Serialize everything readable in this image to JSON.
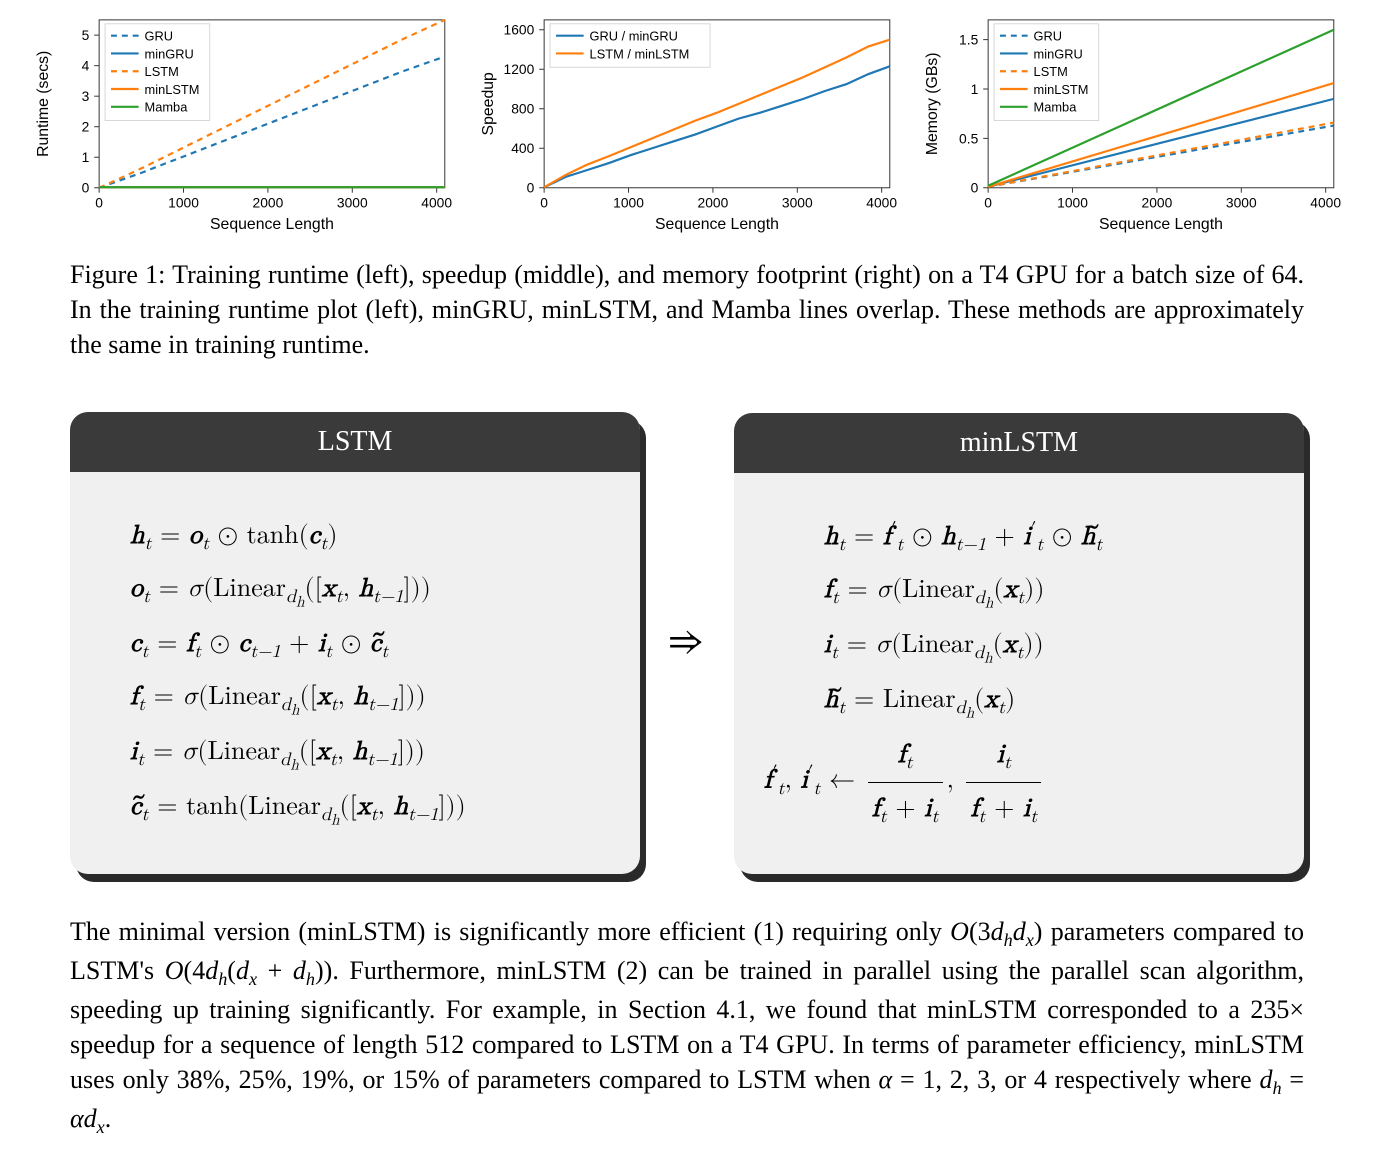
{
  "colors": {
    "GRU": "#1f77b4",
    "minGRU": "#1f77b4",
    "LSTM": "#ff7f0e",
    "minLSTM": "#ff7f0e",
    "Mamba": "#2ca02c",
    "axis": "#333333",
    "tick": "#333333",
    "box_bg": "#f0f0f0",
    "box_header": "#3a3a3a",
    "box_shadow": "#2a2a2a"
  },
  "chart_left": {
    "type": "line",
    "xlabel": "Sequence Length",
    "ylabel": "Runtime (secs)",
    "xlim": [
      0,
      4096
    ],
    "ylim": [
      0,
      5.5
    ],
    "xticks": [
      0,
      1000,
      2000,
      3000,
      4000
    ],
    "yticks": [
      0,
      1,
      2,
      3,
      4,
      5
    ],
    "label_fontsize": 12,
    "legend_pos": "upper-left",
    "series": [
      {
        "name": "GRU",
        "color": "#1f77b4",
        "dash": true,
        "x": [
          0,
          256,
          512,
          768,
          1024,
          1536,
          2048,
          2560,
          3072,
          3584,
          4096
        ],
        "y": [
          0,
          0.25,
          0.5,
          0.78,
          1.05,
          1.6,
          2.15,
          2.7,
          3.25,
          3.8,
          4.3
        ]
      },
      {
        "name": "minGRU",
        "color": "#1f77b4",
        "dash": false,
        "x": [
          0,
          4096
        ],
        "y": [
          0.02,
          0.02
        ]
      },
      {
        "name": "LSTM",
        "color": "#ff7f0e",
        "dash": true,
        "x": [
          0,
          256,
          512,
          768,
          1024,
          1536,
          2048,
          2560,
          3072,
          3584,
          4096
        ],
        "y": [
          0,
          0.32,
          0.65,
          1.0,
          1.35,
          2.05,
          2.75,
          3.45,
          4.15,
          4.85,
          5.5
        ]
      },
      {
        "name": "minLSTM",
        "color": "#ff7f0e",
        "dash": false,
        "x": [
          0,
          4096
        ],
        "y": [
          0.02,
          0.02
        ]
      },
      {
        "name": "Mamba",
        "color": "#2ca02c",
        "dash": false,
        "x": [
          0,
          4096
        ],
        "y": [
          0.02,
          0.02
        ]
      }
    ]
  },
  "chart_mid": {
    "type": "line",
    "xlabel": "Sequence Length",
    "ylabel": "Speedup",
    "xlim": [
      0,
      4096
    ],
    "ylim": [
      0,
      1700
    ],
    "xticks": [
      0,
      1000,
      2000,
      3000,
      4000
    ],
    "yticks": [
      0,
      400,
      800,
      1200,
      1600
    ],
    "label_fontsize": 12,
    "legend_pos": "upper-left",
    "series": [
      {
        "name": "GRU / minGRU",
        "color": "#1f77b4",
        "dash": false,
        "x": [
          0,
          256,
          512,
          768,
          1024,
          1280,
          1536,
          1792,
          2048,
          2304,
          2560,
          2816,
          3072,
          3328,
          3584,
          3840,
          4096
        ],
        "y": [
          5,
          110,
          180,
          250,
          330,
          400,
          470,
          540,
          620,
          700,
          760,
          830,
          900,
          980,
          1050,
          1150,
          1230
        ]
      },
      {
        "name": "LSTM / minLSTM",
        "color": "#ff7f0e",
        "dash": false,
        "x": [
          0,
          256,
          512,
          768,
          1024,
          1280,
          1536,
          1792,
          2048,
          2304,
          2560,
          2816,
          3072,
          3328,
          3584,
          3840,
          4096
        ],
        "y": [
          5,
          130,
          235,
          320,
          410,
          500,
          590,
          680,
          760,
          850,
          940,
          1030,
          1120,
          1220,
          1320,
          1430,
          1500
        ]
      }
    ]
  },
  "chart_right": {
    "type": "line",
    "xlabel": "Sequence Length",
    "ylabel": "Memory (GBs)",
    "xlim": [
      0,
      4096
    ],
    "ylim": [
      0,
      1.7
    ],
    "xticks": [
      0,
      1000,
      2000,
      3000,
      4000
    ],
    "yticks": [
      0,
      0.5,
      1.0,
      1.5
    ],
    "label_fontsize": 12,
    "legend_pos": "upper-left",
    "series": [
      {
        "name": "GRU",
        "color": "#1f77b4",
        "dash": true,
        "x": [
          0,
          4096
        ],
        "y": [
          0.01,
          0.63
        ]
      },
      {
        "name": "minGRU",
        "color": "#1f77b4",
        "dash": false,
        "x": [
          0,
          4096
        ],
        "y": [
          0.01,
          0.9
        ]
      },
      {
        "name": "LSTM",
        "color": "#ff7f0e",
        "dash": true,
        "x": [
          0,
          4096
        ],
        "y": [
          0.01,
          0.66
        ]
      },
      {
        "name": "minLSTM",
        "color": "#ff7f0e",
        "dash": false,
        "x": [
          0,
          4096
        ],
        "y": [
          0.01,
          1.06
        ]
      },
      {
        "name": "Mamba",
        "color": "#2ca02c",
        "dash": false,
        "x": [
          0,
          4096
        ],
        "y": [
          0.02,
          1.6
        ]
      }
    ]
  },
  "caption": "Figure 1: Training runtime (left), speedup (middle), and memory footprint (right) on a T4 GPU for a batch size of 64. In the training runtime plot (left), minGRU, minLSTM, and Mamba lines overlap. These methods are approximately the same in training runtime.",
  "box_left_title": "LSTM",
  "box_right_title": "minLSTM",
  "body_text_prefix": "The minimal version (minLSTM) is significantly more efficient (1) requiring only ",
  "body_text_mid1": " parameters compared to LSTM's ",
  "body_text_mid2": ". Furthermore, minLSTM (2) can be trained in parallel using the parallel scan algorithm, speeding up training significantly. For example, in Section 4.1, we found that minLSTM corresponded to a ",
  "body_text_mid3": " speedup for a sequence of length 512 compared to LSTM on a T4 GPU. In terms of parameter efficiency, minLSTM uses only ",
  "body_text_mid4": " of parameters compared to LSTM when ",
  "body_text_mid5": " respectively where ",
  "big_o_min": "O(3d_h d_x)",
  "big_o_lstm": "O(4d_h(d_x + d_h))",
  "speedup_val": "235×",
  "percents": "38%, 25%, 19%, or 15%",
  "alpha_vals": "α = 1, 2, 3, or 4",
  "dh_eq": "d_h = αd_x"
}
